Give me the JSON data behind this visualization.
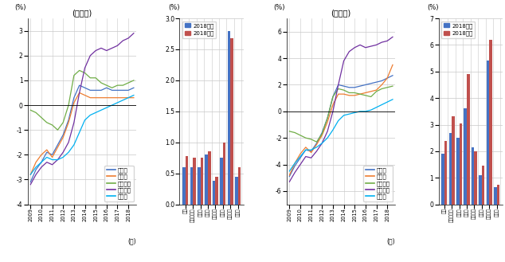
{
  "title_residential": "(住宅地)",
  "title_commercial": "(商業地)",
  "ylabel_pct": "(%)",
  "xlabel_year": "(年)",
  "x_tick_labels": [
    "2009",
    "2010",
    "2011",
    "2012",
    "2013",
    "2014",
    "2015",
    "2016",
    "2017",
    "2018"
  ],
  "residential": {
    "tokyo": [
      -3.1,
      -2.6,
      -2.3,
      -1.9,
      -2.0,
      -1.6,
      -1.2,
      -0.6,
      0.3,
      0.8,
      0.7,
      0.6,
      0.6,
      0.6,
      0.7,
      0.6,
      0.6,
      0.6,
      0.6,
      0.7
    ],
    "osaka": [
      -2.8,
      -2.3,
      -2.0,
      -1.8,
      -2.1,
      -1.7,
      -1.3,
      -0.7,
      0.1,
      0.5,
      0.4,
      0.3,
      0.3,
      0.3,
      0.3,
      0.3,
      0.3,
      0.3,
      0.3,
      0.3
    ],
    "nagoya": [
      -0.2,
      -0.3,
      -0.5,
      -0.7,
      -0.8,
      -1.0,
      -0.7,
      0.0,
      1.2,
      1.4,
      1.3,
      1.1,
      1.1,
      0.9,
      0.8,
      0.7,
      0.8,
      0.8,
      0.9,
      1.0
    ],
    "chihoshinku": [
      -3.2,
      -2.8,
      -2.5,
      -2.3,
      -2.4,
      -2.2,
      -1.9,
      -1.5,
      -0.7,
      0.5,
      1.5,
      2.0,
      2.2,
      2.3,
      2.2,
      2.3,
      2.4,
      2.6,
      2.7,
      2.9
    ],
    "sonota": [
      -2.8,
      -2.5,
      -2.3,
      -2.1,
      -2.2,
      -2.2,
      -2.1,
      -1.9,
      -1.6,
      -1.1,
      -0.6,
      -0.4,
      -0.3,
      -0.2,
      -0.1,
      0.0,
      0.1,
      0.2,
      0.3,
      0.4
    ]
  },
  "commercial": {
    "tokyo": [
      -4.9,
      -4.1,
      -3.5,
      -2.9,
      -3.0,
      -2.4,
      -1.6,
      -0.5,
      1.1,
      2.0,
      1.9,
      1.8,
      1.8,
      1.9,
      2.0,
      2.1,
      2.2,
      2.3,
      2.5,
      2.7
    ],
    "osaka": [
      -4.8,
      -3.9,
      -3.2,
      -2.7,
      -3.1,
      -2.5,
      -1.8,
      -0.8,
      0.5,
      1.3,
      1.3,
      1.2,
      1.2,
      1.3,
      1.4,
      1.5,
      1.6,
      2.0,
      2.5,
      3.5
    ],
    "nagoya": [
      -1.5,
      -1.6,
      -1.8,
      -2.0,
      -2.1,
      -2.3,
      -1.7,
      -0.5,
      1.1,
      1.7,
      1.6,
      1.4,
      1.4,
      1.3,
      1.2,
      1.1,
      1.5,
      1.7,
      1.8,
      1.9
    ],
    "chihoshinku": [
      -5.3,
      -4.6,
      -4.0,
      -3.4,
      -3.5,
      -3.0,
      -2.4,
      -1.5,
      0.0,
      2.0,
      3.8,
      4.5,
      4.8,
      5.0,
      4.8,
      4.9,
      5.0,
      5.2,
      5.3,
      5.6
    ],
    "sonota": [
      -4.5,
      -3.9,
      -3.4,
      -2.9,
      -2.9,
      -2.7,
      -2.4,
      -2.0,
      -1.4,
      -0.7,
      -0.3,
      -0.2,
      -0.1,
      0.0,
      0.0,
      0.1,
      0.3,
      0.5,
      0.7,
      0.9
    ]
  },
  "bar_categories": [
    "全国",
    "三大都市圈",
    "東京圈",
    "大阪圈",
    "名古屋圈",
    "地方圈",
    "地方四市",
    "その他"
  ],
  "residential_bar": {
    "before": [
      0.6,
      0.6,
      0.6,
      0.8,
      0.38,
      0.75,
      2.8,
      0.45
    ],
    "after": [
      0.78,
      0.75,
      0.75,
      0.85,
      0.45,
      1.0,
      2.68,
      0.6
    ]
  },
  "commercial_bar": {
    "before": [
      1.9,
      2.7,
      2.5,
      3.6,
      2.15,
      1.1,
      5.4,
      0.65
    ],
    "after": [
      2.4,
      3.3,
      3.05,
      4.9,
      2.0,
      1.45,
      6.2,
      0.75
    ]
  },
  "line_colors": {
    "tokyo": "#4472c4",
    "osaka": "#ed7d31",
    "nagoya": "#70ad47",
    "chihoshinku": "#7030a0",
    "sonota": "#00b0f0"
  },
  "legend_labels": [
    "東京圈",
    "大阪圈",
    "名古屋圈",
    "地方四市",
    "その他"
  ],
  "bar_color_before": "#4472c4",
  "bar_color_after": "#c0504d",
  "legend_bar": [
    "2018前半",
    "2018後半"
  ],
  "residential_ylim": [
    -4,
    3.5
  ],
  "commercial_ylim": [
    -7,
    7
  ],
  "bar_res_ylim": [
    0,
    3
  ],
  "bar_com_ylim": [
    0,
    7
  ],
  "background_color": "#ffffff",
  "grid_color": "#c8c8c8"
}
